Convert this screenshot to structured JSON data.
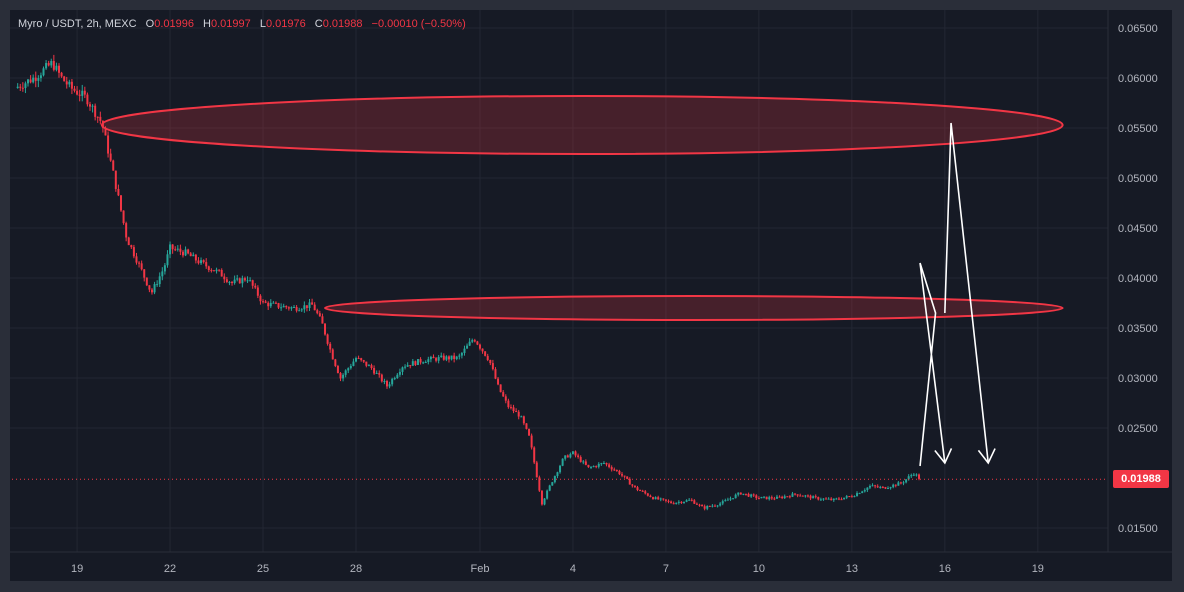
{
  "header": {
    "symbol": "Myro / USDT, 2h, MEXC",
    "open_label": "O",
    "open": "0.01996",
    "high_label": "H",
    "high": "0.01997",
    "low_label": "L",
    "low": "0.01976",
    "close_label": "C",
    "close": "0.01988",
    "change": "−0.00010 (−0.50%)"
  },
  "last_price_label": "0.01988",
  "colors": {
    "up": "#26a69a",
    "down": "#f23645",
    "zone": "#f23645",
    "arrow": "#ffffff",
    "background": "#161a25",
    "grid": "#232733"
  },
  "chart_data": {
    "type": "candlestick",
    "y_axis": {
      "min": 0.0127,
      "max": 0.0666,
      "ticks": [
        "0.06500",
        "0.06000",
        "0.05500",
        "0.05000",
        "0.04500",
        "0.04000",
        "0.03500",
        "0.03000",
        "0.02500",
        "0.01500"
      ]
    },
    "x_axis": {
      "ticks": [
        "19",
        "22",
        "25",
        "28",
        "Feb",
        "4",
        "7",
        "10",
        "13",
        "16",
        "19"
      ],
      "tick_days": [
        19,
        22,
        25,
        28,
        32,
        35,
        38,
        41,
        44,
        47,
        50
      ],
      "day_min": 16.9,
      "day_max": 52.2
    },
    "last_price": 0.01988,
    "price_path": [
      [
        17.0,
        0.059
      ],
      [
        17.6,
        0.06
      ],
      [
        18.2,
        0.0615
      ],
      [
        18.5,
        0.06
      ],
      [
        18.8,
        0.059
      ],
      [
        19.3,
        0.058
      ],
      [
        19.8,
        0.0555
      ],
      [
        20.2,
        0.05
      ],
      [
        20.6,
        0.044
      ],
      [
        20.9,
        0.042
      ],
      [
        21.4,
        0.0385
      ],
      [
        21.8,
        0.041
      ],
      [
        22.0,
        0.043
      ],
      [
        22.5,
        0.0425
      ],
      [
        23.0,
        0.0415
      ],
      [
        23.6,
        0.0405
      ],
      [
        24.0,
        0.0395
      ],
      [
        24.5,
        0.04
      ],
      [
        25.0,
        0.0375
      ],
      [
        25.5,
        0.0372
      ],
      [
        26.0,
        0.037
      ],
      [
        26.6,
        0.0373
      ],
      [
        26.9,
        0.0355
      ],
      [
        27.2,
        0.0325
      ],
      [
        27.5,
        0.03
      ],
      [
        28.0,
        0.032
      ],
      [
        28.5,
        0.031
      ],
      [
        29.0,
        0.0292
      ],
      [
        29.5,
        0.0312
      ],
      [
        30.2,
        0.0318
      ],
      [
        30.8,
        0.032
      ],
      [
        31.3,
        0.032
      ],
      [
        31.8,
        0.034
      ],
      [
        32.3,
        0.0318
      ],
      [
        32.6,
        0.029
      ],
      [
        32.9,
        0.0272
      ],
      [
        33.3,
        0.0262
      ],
      [
        33.6,
        0.024
      ],
      [
        34.0,
        0.0175
      ],
      [
        34.3,
        0.0195
      ],
      [
        34.7,
        0.022
      ],
      [
        35.0,
        0.0225
      ],
      [
        35.5,
        0.021
      ],
      [
        36.0,
        0.0215
      ],
      [
        36.5,
        0.0205
      ],
      [
        37.0,
        0.019
      ],
      [
        37.6,
        0.018
      ],
      [
        38.2,
        0.0175
      ],
      [
        38.8,
        0.0178
      ],
      [
        39.2,
        0.017
      ],
      [
        39.8,
        0.0175
      ],
      [
        40.4,
        0.0185
      ],
      [
        41.0,
        0.018
      ],
      [
        41.6,
        0.018
      ],
      [
        42.2,
        0.0184
      ],
      [
        42.8,
        0.018
      ],
      [
        43.4,
        0.0178
      ],
      [
        44.0,
        0.0182
      ],
      [
        44.6,
        0.0192
      ],
      [
        45.0,
        0.019
      ],
      [
        45.6,
        0.0195
      ],
      [
        46.0,
        0.0205
      ],
      [
        46.2,
        0.0199
      ]
    ],
    "ellipses": [
      {
        "day_from": 19.8,
        "day_to": 50.8,
        "price_top": 0.0582,
        "price_bottom": 0.0524
      },
      {
        "day_from": 27.0,
        "day_to": 50.8,
        "price_top": 0.0382,
        "price_bottom": 0.0358
      }
    ],
    "arrows": [
      {
        "path": [
          [
            46.2,
            0.0212
          ],
          [
            46.7,
            0.0365
          ],
          [
            46.2,
            0.0415
          ],
          [
            47.0,
            0.0215
          ]
        ]
      },
      {
        "path": [
          [
            47.0,
            0.0365
          ],
          [
            47.2,
            0.0555
          ],
          [
            48.4,
            0.0215
          ]
        ]
      }
    ]
  }
}
